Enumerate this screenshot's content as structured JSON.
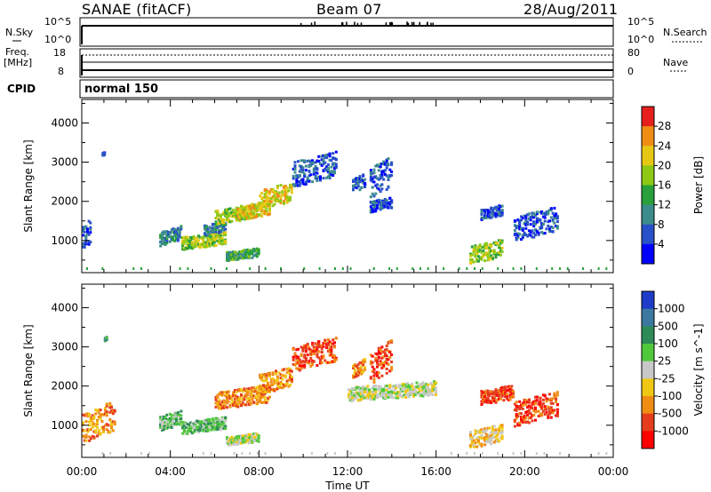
{
  "header": {
    "station": "SANAE (fitACF)",
    "beam": "Beam 07",
    "date": "28/Aug/2011"
  },
  "noise_panel": {
    "left_label": "N.Sky",
    "right_label": "N.Search",
    "left_ticks": [
      "10^5",
      "10^0"
    ],
    "right_ticks": [
      "10^5",
      "10^0"
    ]
  },
  "freq_panel": {
    "left_label_line1": "Freq.",
    "left_label_line2": "[MHz]",
    "right_label": "Nave",
    "left_ticks": [
      "18",
      "8"
    ],
    "right_ticks": [
      "80",
      "0"
    ]
  },
  "cpid_panel": {
    "label": "CPID",
    "value": "normal 150"
  },
  "chart_data": [
    {
      "type": "heatmap",
      "name": "power",
      "ylabel": "Slant Range [km]",
      "ylim": [
        180,
        4600
      ],
      "yticks": [
        1000,
        2000,
        3000,
        4000
      ],
      "xlim": [
        0,
        24
      ],
      "xticks": [
        "00:00",
        "04:00",
        "08:00",
        "12:00",
        "16:00",
        "20:00",
        "00:00"
      ],
      "colorbar_label": "Power [dB]",
      "colorbar_ticks": [
        "4",
        "8",
        "12",
        "16",
        "20",
        "24",
        "28"
      ],
      "colors": [
        "#0000ff",
        "#2850c8",
        "#3c8c8c",
        "#28a03c",
        "#8cc814",
        "#e6c814",
        "#f08c14",
        "#e61e1e"
      ],
      "clusters": [
        {
          "t": [
            0.0,
            0.4
          ],
          "r": [
            850,
            1550
          ],
          "level": 1
        },
        {
          "t": [
            0.9,
            1.0
          ],
          "r": [
            3200,
            3280
          ],
          "level": 1
        },
        {
          "t": [
            3.5,
            4.5
          ],
          "r": [
            950,
            1350
          ],
          "level": 2
        },
        {
          "t": [
            4.5,
            6.5
          ],
          "r": [
            850,
            1200
          ],
          "level": 4
        },
        {
          "t": [
            5.5,
            6.5
          ],
          "r": [
            1200,
            1500
          ],
          "level": 2
        },
        {
          "t": [
            6.0,
            7.8
          ],
          "r": [
            1500,
            1900
          ],
          "level": 4
        },
        {
          "t": [
            6.5,
            8.0
          ],
          "r": [
            550,
            800
          ],
          "level": 3
        },
        {
          "t": [
            7.0,
            8.5
          ],
          "r": [
            1600,
            2000
          ],
          "level": 5
        },
        {
          "t": [
            8.0,
            9.5
          ],
          "r": [
            1900,
            2450
          ],
          "level": 5
        },
        {
          "t": [
            9.5,
            11.5
          ],
          "r": [
            2500,
            3200
          ],
          "level": 1
        },
        {
          "t": [
            12.2,
            12.8
          ],
          "r": [
            2300,
            2700
          ],
          "level": 1
        },
        {
          "t": [
            13.0,
            14.0
          ],
          "r": [
            2200,
            3100
          ],
          "level": 1
        },
        {
          "t": [
            13.0,
            14.0
          ],
          "r": [
            1800,
            2100
          ],
          "level": 1
        },
        {
          "t": [
            17.5,
            19.0
          ],
          "r": [
            500,
            1000
          ],
          "level": 4
        },
        {
          "t": [
            18.0,
            19.0
          ],
          "r": [
            1600,
            1900
          ],
          "level": 1
        },
        {
          "t": [
            19.5,
            21.5
          ],
          "r": [
            1100,
            1800
          ],
          "level": 1
        }
      ]
    },
    {
      "type": "heatmap",
      "name": "velocity",
      "ylabel": "Slant Range [km]",
      "ylim": [
        180,
        4600
      ],
      "yticks": [
        1000,
        2000,
        3000,
        4000
      ],
      "xlim": [
        0,
        24
      ],
      "xticks": [
        "00:00",
        "04:00",
        "08:00",
        "12:00",
        "16:00",
        "20:00",
        "00:00"
      ],
      "xlabel": "Time UT",
      "colorbar_label": "Velocity [m s^-1]",
      "colorbar_ticks": [
        "1000",
        "500",
        "100",
        "25",
        "-25",
        "-100",
        "-500",
        "-1000"
      ],
      "colors": [
        "#1e3cc8",
        "#3c78a0",
        "#2e8b57",
        "#50c83c",
        "#c8c8c8",
        "#f0c814",
        "#f08c14",
        "#e63c1e",
        "#ff0000"
      ],
      "clusters": [
        {
          "t": [
            0.0,
            1.5
          ],
          "r": [
            700,
            1550
          ],
          "level": 6
        },
        {
          "t": [
            1.0,
            1.1
          ],
          "r": [
            3200,
            3280
          ],
          "level": 2
        },
        {
          "t": [
            3.5,
            4.5
          ],
          "r": [
            950,
            1350
          ],
          "level": 3
        },
        {
          "t": [
            4.5,
            6.5
          ],
          "r": [
            850,
            1200
          ],
          "level": 3
        },
        {
          "t": [
            6.0,
            8.5
          ],
          "r": [
            1500,
            2000
          ],
          "level": 6
        },
        {
          "t": [
            6.5,
            8.0
          ],
          "r": [
            550,
            800
          ],
          "level": 4
        },
        {
          "t": [
            8.0,
            9.5
          ],
          "r": [
            1900,
            2450
          ],
          "level": 6
        },
        {
          "t": [
            9.5,
            11.5
          ],
          "r": [
            2500,
            3200
          ],
          "level": 7
        },
        {
          "t": [
            12.2,
            12.8
          ],
          "r": [
            2300,
            2700
          ],
          "level": 6
        },
        {
          "t": [
            13.0,
            14.0
          ],
          "r": [
            2200,
            3100
          ],
          "level": 7
        },
        {
          "t": [
            12.0,
            16.0
          ],
          "r": [
            1700,
            2100
          ],
          "level": 4
        },
        {
          "t": [
            17.5,
            19.0
          ],
          "r": [
            500,
            1000
          ],
          "level": 5
        },
        {
          "t": [
            18.0,
            19.5
          ],
          "r": [
            1600,
            2000
          ],
          "level": 7
        },
        {
          "t": [
            19.5,
            21.5
          ],
          "r": [
            1100,
            1800
          ],
          "level": 7
        }
      ]
    }
  ]
}
